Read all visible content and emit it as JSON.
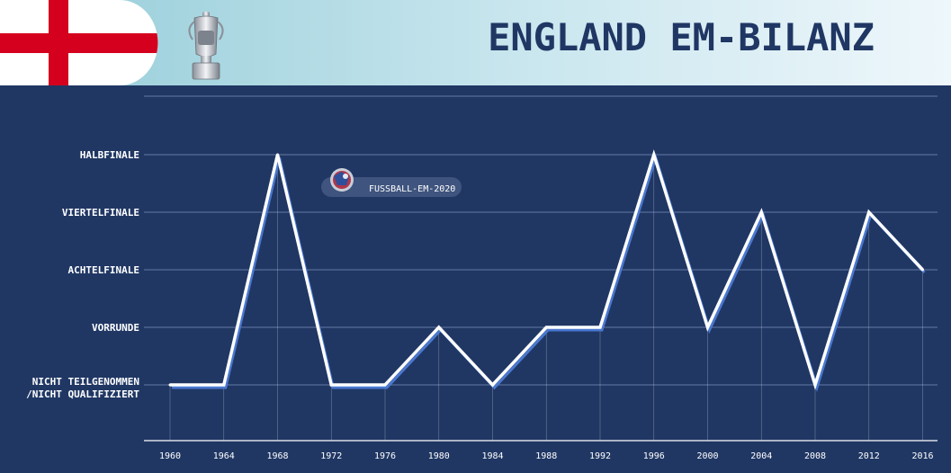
{
  "header": {
    "title": "ENGLAND EM-BILANZ",
    "flag_icon": "england-flag-icon",
    "trophy_icon": "euro-trophy-icon"
  },
  "watermark": {
    "text": "FUSSBALL-EM-2020",
    "icon": "football-icon"
  },
  "colors": {
    "background": "#203764",
    "header_light": "#eef7fb",
    "header_dark": "#93ccd8",
    "line": "#ffffff",
    "line_shadow": "#4a78d0",
    "grid": "#7d8fb8",
    "flag_red": "#d4001e",
    "title": "#203764"
  },
  "chart_data": {
    "type": "line",
    "title": "ENGLAND EM-BILANZ",
    "xlabel": "",
    "ylabel": "",
    "grid": true,
    "legend": "none",
    "x": [
      "1960",
      "1964",
      "1968",
      "1972",
      "1976",
      "1980",
      "1984",
      "1988",
      "1992",
      "1996",
      "2000",
      "2004",
      "2008",
      "2012",
      "2016"
    ],
    "levels": [
      {
        "lines": [
          "NICHT TEILGENOMMEN",
          "/NICHT QUALIFIZIERT"
        ]
      },
      {
        "lines": [
          "VORRUNDE"
        ]
      },
      {
        "lines": [
          "ACHTELFINALE"
        ]
      },
      {
        "lines": [
          "VIERTELFINALE"
        ]
      },
      {
        "lines": [
          "HALBFINALE"
        ]
      }
    ],
    "ylim": [
      0,
      5
    ],
    "series": [
      {
        "values": [
          0,
          0,
          4,
          0,
          0,
          1,
          0,
          1,
          1,
          4,
          1,
          3,
          0,
          3,
          2
        ]
      }
    ]
  }
}
